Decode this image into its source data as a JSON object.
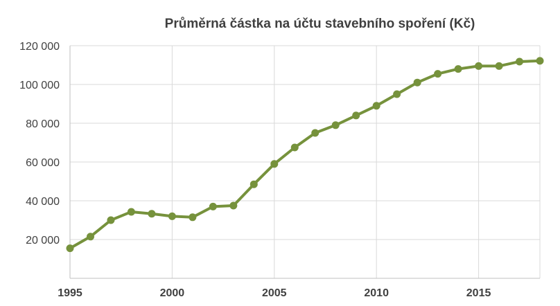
{
  "chart_data": {
    "type": "line",
    "title": "Průměrná částka na účtu stavebního spoření (Kč)",
    "xlabel": "",
    "ylabel": "",
    "x": [
      1995,
      1996,
      1997,
      1998,
      1999,
      2000,
      2001,
      2002,
      2003,
      2004,
      2005,
      2006,
      2007,
      2008,
      2009,
      2010,
      2011,
      2012,
      2013,
      2014,
      2015,
      2016,
      2017,
      2018
    ],
    "series": [
      {
        "values": [
          15500,
          21500,
          30000,
          34300,
          33300,
          32000,
          31500,
          37000,
          37500,
          48500,
          59000,
          67500,
          75000,
          79000,
          84000,
          89000,
          95000,
          101000,
          105500,
          108000,
          109500,
          109500,
          111800,
          112200
        ],
        "color": "#76923c"
      }
    ],
    "ylim": [
      0,
      120000
    ],
    "xlim": [
      1995,
      2018
    ],
    "yticks": [
      20000,
      40000,
      60000,
      80000,
      100000,
      120000
    ],
    "ytick_labels": [
      "20 000",
      "40 000",
      "60 000",
      "80 000",
      "100 000",
      "120 000"
    ],
    "xticks": [
      1995,
      2000,
      2005,
      2010,
      2015
    ],
    "xtick_labels": [
      "1995",
      "2000",
      "2005",
      "2010",
      "2015"
    ],
    "grid": "horizontal and vertical",
    "legend": "none"
  }
}
